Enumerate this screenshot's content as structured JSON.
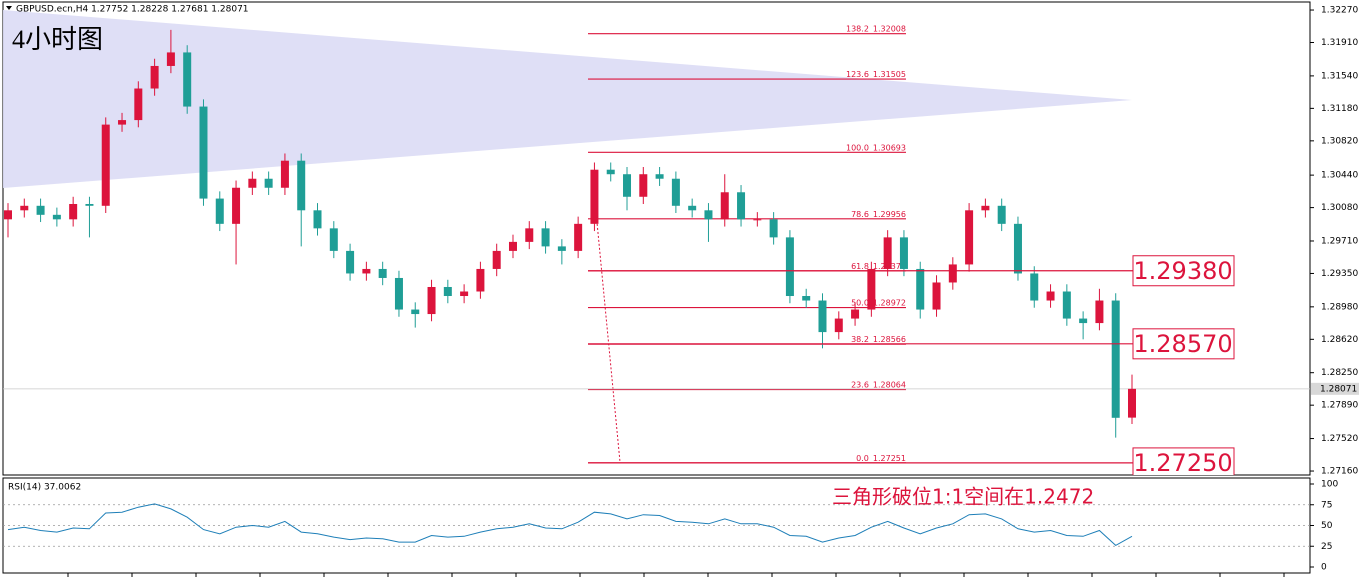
{
  "chart_data": [
    {
      "type": "candlestick",
      "title": "GBPUSD.ecn,H4  1.27752 1.28228 1.27681 1.28071",
      "subtitle": "4小时图",
      "note": "三角形破位1:1空间在1.2472",
      "up_color": "#dc143c",
      "down_color": "#1f9e96",
      "open": [
        1.2995,
        1.3005,
        1.301,
        1.3,
        1.2995,
        1.3012,
        1.301,
        1.31,
        1.3105,
        1.314,
        1.3165,
        1.318,
        1.312,
        1.3018,
        1.299,
        1.303,
        1.304,
        1.303,
        1.306,
        1.3005,
        1.2985,
        1.296,
        1.2935,
        1.294,
        1.293,
        1.2895,
        1.289,
        1.292,
        1.291,
        1.2915,
        1.294,
        1.296,
        1.297,
        1.2985,
        1.2965,
        1.296,
        1.299,
        1.305,
        1.3045,
        1.302,
        1.3045,
        1.304,
        1.301,
        1.3005,
        1.2995,
        1.3025,
        1.2995,
        1.2995,
        1.2975,
        1.291,
        1.2905,
        1.287,
        1.2885,
        1.2895,
        1.294,
        1.2975,
        1.294,
        1.2895,
        1.2925,
        1.2945,
        1.3005,
        1.301,
        1.299,
        1.2935,
        1.2905,
        1.2915,
        1.2885,
        1.288,
        1.2905,
        1.27752
      ],
      "high": [
        1.3013,
        1.3018,
        1.3018,
        1.3008,
        1.302,
        1.302,
        1.3108,
        1.3113,
        1.3148,
        1.3173,
        1.3205,
        1.3188,
        1.3128,
        1.3026,
        1.3038,
        1.3048,
        1.3048,
        1.3068,
        1.3068,
        1.3013,
        1.2993,
        1.2968,
        1.2948,
        1.2948,
        1.2938,
        1.2903,
        1.2928,
        1.2928,
        1.2923,
        1.2948,
        1.2968,
        1.2978,
        1.2993,
        1.2993,
        1.2973,
        1.2998,
        1.3058,
        1.3058,
        1.3053,
        1.3053,
        1.3053,
        1.3048,
        1.3018,
        1.3013,
        1.3045,
        1.3033,
        1.3003,
        1.3003,
        1.2983,
        1.2918,
        1.2913,
        1.2893,
        1.2903,
        1.2948,
        1.2983,
        1.2983,
        1.2948,
        1.2933,
        1.2953,
        1.3013,
        1.3018,
        1.3018,
        1.2998,
        1.2943,
        1.2923,
        1.2923,
        1.2893,
        1.2918,
        1.2913,
        1.28228
      ],
      "low": [
        1.2975,
        1.2997,
        1.2992,
        1.2987,
        1.2987,
        1.2975,
        1.3002,
        1.3092,
        1.3097,
        1.3132,
        1.3157,
        1.3112,
        1.301,
        1.2982,
        1.2945,
        1.3022,
        1.3022,
        1.3022,
        1.2965,
        1.2977,
        1.2952,
        1.2927,
        1.2927,
        1.2922,
        1.2887,
        1.2875,
        1.2882,
        1.2902,
        1.2902,
        1.2907,
        1.2932,
        1.2952,
        1.2962,
        1.2957,
        1.2945,
        1.2952,
        1.2982,
        1.3037,
        1.3005,
        1.3012,
        1.3032,
        1.3002,
        1.2997,
        1.297,
        1.2987,
        1.2987,
        1.2987,
        1.2967,
        1.2902,
        1.2897,
        1.2852,
        1.2862,
        1.2877,
        1.2887,
        1.2932,
        1.2932,
        1.2885,
        1.2887,
        1.2917,
        1.2937,
        1.2997,
        1.2982,
        1.2927,
        1.2897,
        1.2897,
        1.2877,
        1.2862,
        1.2872,
        1.2753,
        1.27681
      ],
      "close": [
        1.3005,
        1.301,
        1.3,
        1.2995,
        1.3012,
        1.301,
        1.31,
        1.3105,
        1.314,
        1.3165,
        1.318,
        1.312,
        1.3018,
        1.299,
        1.303,
        1.304,
        1.303,
        1.306,
        1.3005,
        1.2985,
        1.296,
        1.2935,
        1.294,
        1.293,
        1.2895,
        1.289,
        1.292,
        1.291,
        1.2915,
        1.294,
        1.296,
        1.297,
        1.2985,
        1.2965,
        1.296,
        1.299,
        1.305,
        1.3045,
        1.302,
        1.3045,
        1.304,
        1.301,
        1.3005,
        1.2995,
        1.3025,
        1.2995,
        1.2995,
        1.2975,
        1.291,
        1.2905,
        1.287,
        1.2885,
        1.2895,
        1.294,
        1.2975,
        1.294,
        1.2895,
        1.2925,
        1.2945,
        1.3005,
        1.301,
        1.299,
        1.2935,
        1.2905,
        1.2915,
        1.2885,
        1.288,
        1.2905,
        1.2775,
        1.28071
      ],
      "current_price": 1.28071,
      "fib_levels": [
        {
          "ratio": "138.2",
          "price": 1.32008
        },
        {
          "ratio": "123.6",
          "price": 1.31505
        },
        {
          "ratio": "100.0",
          "price": 1.30693
        },
        {
          "ratio": "78.6",
          "price": 1.29956
        },
        {
          "ratio": "61.8",
          "price": 1.29378
        },
        {
          "ratio": "50.0",
          "price": 1.28972
        },
        {
          "ratio": "38.2",
          "price": 1.28566
        },
        {
          "ratio": "23.6",
          "price": 1.28064
        },
        {
          "ratio": "0.0",
          "price": 1.27251
        }
      ],
      "annotations": [
        {
          "text": "1.29380",
          "value": 1.2938
        },
        {
          "text": "1.28570",
          "value": 1.2857
        },
        {
          "text": "1.27250",
          "value": 1.2725
        }
      ],
      "ylim": [
        1.27116,
        1.32359
      ],
      "yticks": [
        {
          "value": 1.3227,
          "label": "1.32270"
        },
        {
          "value": 1.3191,
          "label": "1.31910"
        },
        {
          "value": 1.3154,
          "label": "1.31540"
        },
        {
          "value": 1.3118,
          "label": "1.31180"
        },
        {
          "value": 1.3082,
          "label": "1.30820"
        },
        {
          "value": 1.3044,
          "label": "1.30440"
        },
        {
          "value": 1.3008,
          "label": "1.30080"
        },
        {
          "value": 1.2971,
          "label": "1.29710"
        },
        {
          "value": 1.2935,
          "label": "1.29350"
        },
        {
          "value": 1.2898,
          "label": "1.28980"
        },
        {
          "value": 1.2862,
          "label": "1.28620"
        },
        {
          "value": 1.2825,
          "label": "1.28250"
        },
        {
          "value": 1.2789,
          "label": "1.27890"
        },
        {
          "value": 1.2752,
          "label": "1.27520"
        },
        {
          "value": 1.2716,
          "label": "1.27160"
        }
      ]
    },
    {
      "type": "line",
      "title": "RSI(14) 37.0062",
      "color": "#1e7fb8",
      "values": [
        45,
        48,
        44,
        42,
        47,
        46,
        65,
        66,
        72,
        76,
        70,
        60,
        45,
        40,
        48,
        50,
        48,
        55,
        42,
        40,
        36,
        33,
        35,
        34,
        30,
        30,
        38,
        36,
        37,
        42,
        46,
        48,
        52,
        47,
        46,
        54,
        66,
        64,
        58,
        63,
        62,
        55,
        54,
        52,
        58,
        52,
        52,
        48,
        38,
        37,
        30,
        35,
        38,
        48,
        55,
        47,
        40,
        47,
        52,
        63,
        64,
        58,
        46,
        42,
        44,
        38,
        37,
        44,
        26,
        37.0062
      ],
      "ylim": [
        0,
        100
      ],
      "yticks": [
        100,
        75,
        50,
        25,
        0
      ]
    }
  ]
}
